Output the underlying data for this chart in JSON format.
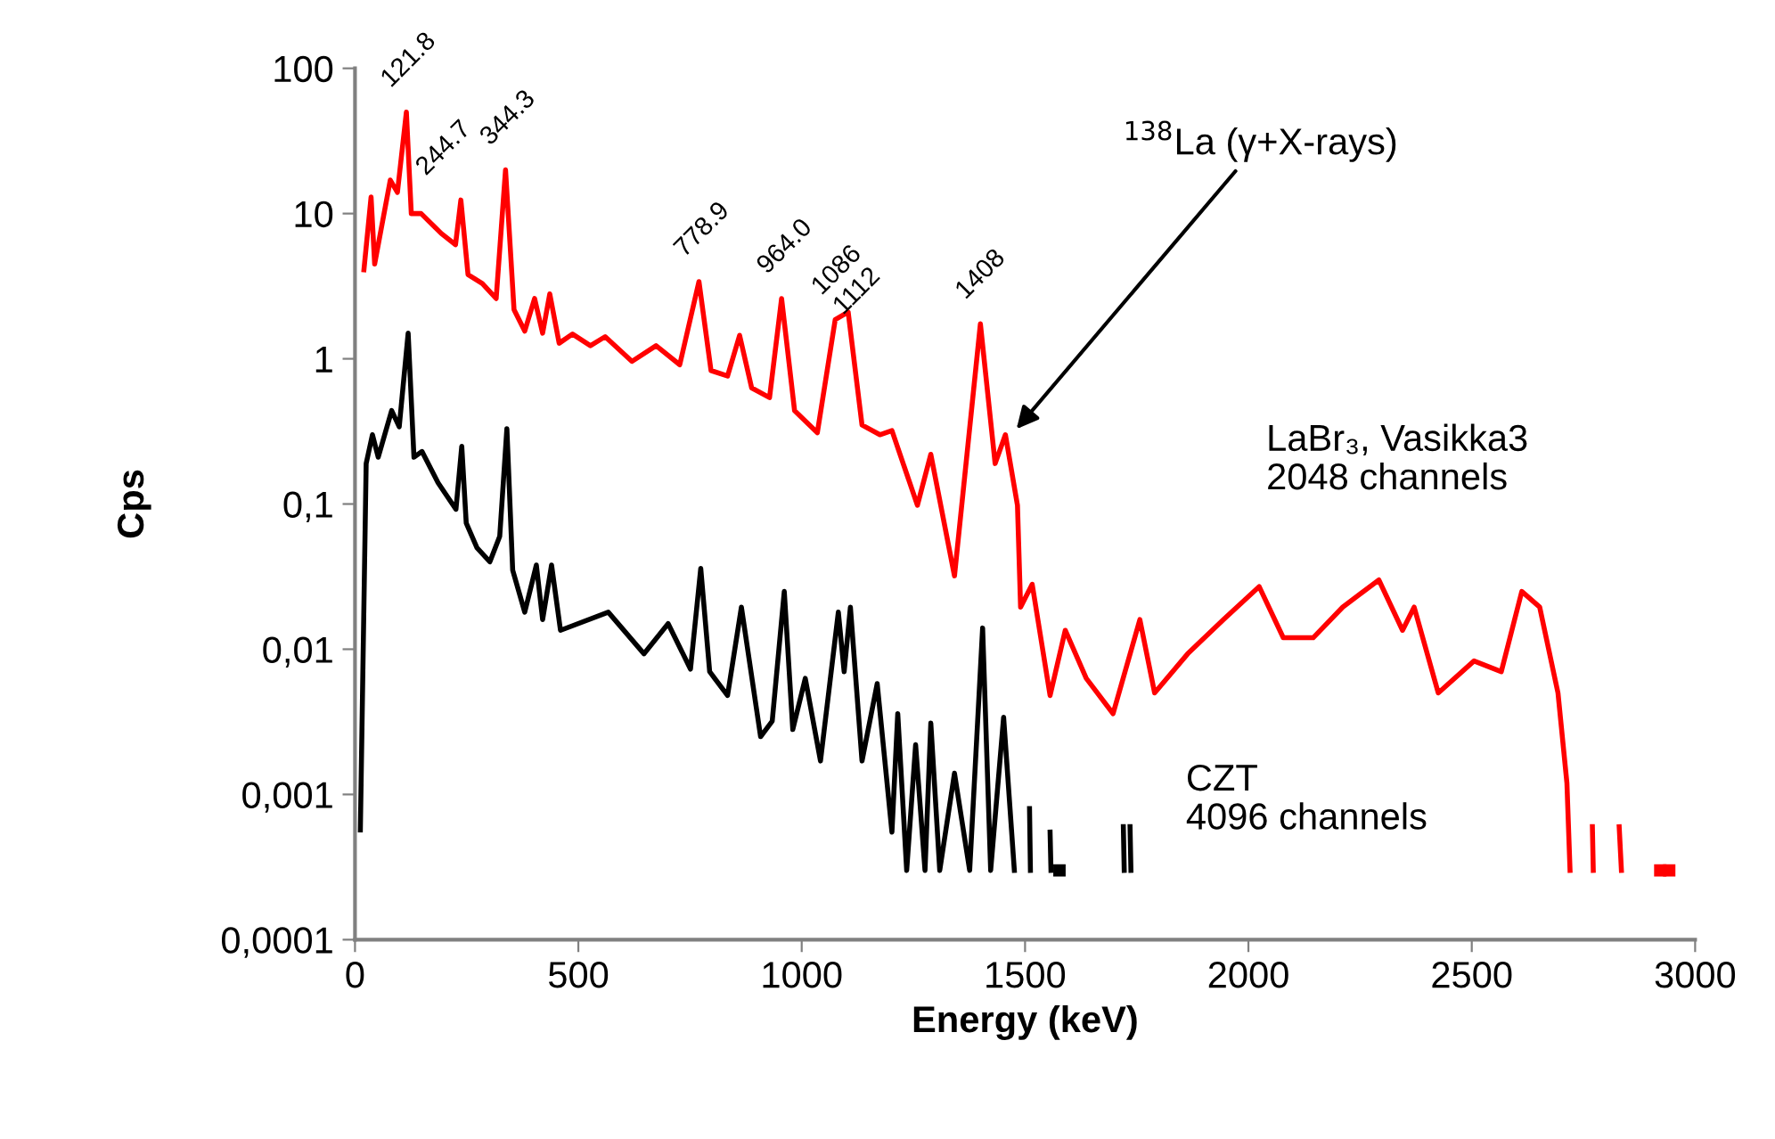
{
  "chart_data": {
    "type": "line",
    "xlabel": "Energy (keV)",
    "ylabel": "Cps",
    "log": "y",
    "grid": false,
    "legend": false,
    "marker": "none",
    "line_style": "solid",
    "xlim": [
      0,
      3000
    ],
    "xticks": [
      0,
      500,
      1000,
      1500,
      2000,
      2500,
      3000
    ],
    "ylim": [
      0.0001,
      100
    ],
    "yticks": [
      {
        "value": 0.0001,
        "label": "0,0001"
      },
      {
        "value": 0.001,
        "label": "0,001"
      },
      {
        "value": 0.01,
        "label": "0,01"
      },
      {
        "value": 0.1,
        "label": "0,1"
      },
      {
        "value": 1,
        "label": "1"
      },
      {
        "value": 10,
        "label": "10"
      },
      {
        "value": 100,
        "label": "100"
      }
    ],
    "series": [
      {
        "name": "LaBr₃, Vasikka3\n2048 channels",
        "color": "#ff0000",
        "x": [
          20,
          36,
          44,
          79,
          95,
          115,
          126,
          148,
          193,
          225,
          237,
          253,
          285,
          316,
          337,
          356,
          380,
          402,
          420,
          436,
          457,
          487,
          527,
          560,
          620,
          674,
          727,
          770,
          797,
          834,
          861,
          888,
          928,
          955,
          984,
          1035,
          1075,
          1104,
          1135,
          1175,
          1202,
          1259,
          1289,
          1342,
          1400,
          1433,
          1456,
          1483,
          1490,
          1516,
          1556,
          1590,
          1637,
          1697,
          1757,
          1790,
          1864,
          1944,
          2024,
          2078,
          2145,
          2211,
          2292,
          2345,
          2371,
          2425,
          2505,
          2566,
          2612,
          2652,
          2693,
          2713,
          2720,
          2745,
          2770,
          2772,
          2790,
          2830,
          2835,
          2880,
          2922,
          2932,
          2942
        ],
        "values": [
          4.1,
          13,
          4.5,
          17,
          14,
          50,
          10,
          10,
          7.3,
          6.1,
          12.4,
          3.8,
          3.3,
          2.6,
          20,
          2.18,
          1.55,
          2.6,
          1.5,
          2.8,
          1.28,
          1.48,
          1.23,
          1.42,
          0.96,
          1.23,
          0.91,
          3.4,
          0.83,
          0.76,
          1.45,
          0.63,
          0.54,
          2.6,
          0.44,
          0.31,
          1.86,
          2.1,
          0.35,
          0.3,
          0.32,
          0.098,
          0.22,
          0.032,
          1.74,
          0.19,
          0.3,
          0.098,
          0.0195,
          0.028,
          0.0048,
          0.0135,
          0.0063,
          0.0036,
          0.016,
          0.005,
          0.0093,
          0.016,
          0.027,
          0.012,
          0.012,
          0.0195,
          0.03,
          0.0135,
          0.0195,
          0.005,
          0.0083,
          0.007,
          0.025,
          0.0195,
          0.005,
          0.0012,
          0.0003,
          null,
          0.0006,
          0.0003,
          null,
          0.0006,
          0.0003,
          null,
          0.0003,
          null,
          0.0003
        ]
      },
      {
        "name": "CZT\n4096 channels",
        "color": "#000000",
        "x": [
          12,
          25,
          39,
          52,
          82,
          99,
          119,
          132,
          150,
          186,
          226,
          239,
          249,
          273,
          302,
          324,
          340,
          353,
          380,
          406,
          420,
          440,
          460,
          567,
          647,
          701,
          751,
          774,
          794,
          834,
          865,
          908,
          934,
          961,
          980,
          1008,
          1042,
          1082,
          1095,
          1109,
          1135,
          1169,
          1202,
          1215,
          1235,
          1255,
          1276,
          1289,
          1309,
          1342,
          1376,
          1405,
          1423,
          1452,
          1476,
          1490,
          1510,
          1512,
          1530,
          1556,
          1558,
          1565,
          1577,
          1650,
          1720,
          1722,
          1728,
          1735,
          1737
        ],
        "values": [
          0.00057,
          0.19,
          0.3,
          0.21,
          0.44,
          0.34,
          1.5,
          0.21,
          0.23,
          0.14,
          0.092,
          0.25,
          0.074,
          0.05,
          0.04,
          0.06,
          0.33,
          0.035,
          0.018,
          0.038,
          0.016,
          0.038,
          0.0135,
          0.018,
          0.0093,
          0.015,
          0.0073,
          0.036,
          0.007,
          0.0048,
          0.0195,
          0.0025,
          0.0032,
          0.025,
          0.0028,
          0.0063,
          0.0017,
          0.018,
          0.007,
          0.0195,
          0.0017,
          0.0058,
          0.00055,
          0.0036,
          0.0003,
          0.0022,
          0.0003,
          0.0031,
          0.0003,
          0.0014,
          0.0003,
          0.014,
          0.0003,
          0.0034,
          0.0003,
          null,
          0.0008,
          0.0003,
          null,
          0.00055,
          0.0003,
          null,
          0.0003,
          null,
          0.0006,
          0.0003,
          null,
          0.0006,
          0.0003
        ]
      }
    ],
    "annotations": [
      {
        "text": "121.8",
        "x": 121.8,
        "y": 50
      },
      {
        "text": "244.7",
        "x": 244.7,
        "y": 12.4
      },
      {
        "text": "344.3",
        "x": 344.3,
        "y": 20
      },
      {
        "text": "778.9",
        "x": 778.9,
        "y": 3.4
      },
      {
        "text": "964.0",
        "x": 964.0,
        "y": 2.6
      },
      {
        "text": "1086",
        "x": 1086,
        "y": 1.86
      },
      {
        "text": "1112",
        "x": 1112,
        "y": 2.1
      },
      {
        "text": "1408",
        "x": 1408,
        "y": 1.74
      },
      {
        "text": "$^{138}$La (γ+X-rays)",
        "x": 1470,
        "y": 0.3
      }
    ]
  }
}
